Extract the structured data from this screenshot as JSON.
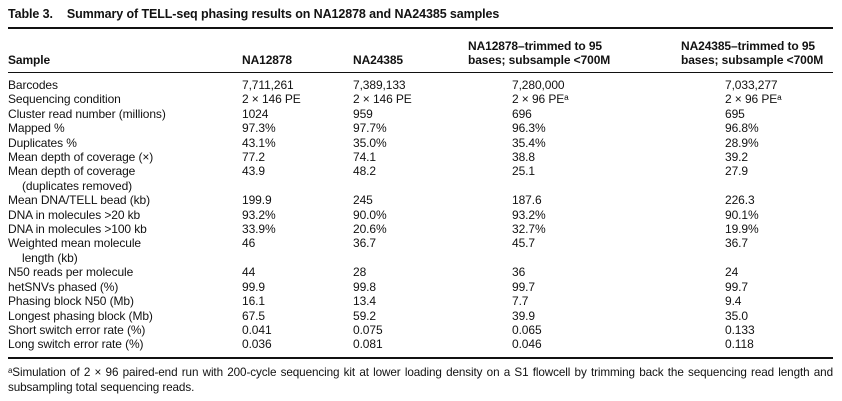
{
  "title": {
    "label": "Table 3.",
    "text": "Summary of TELL-seq phasing results on NA12878 and NA24385 samples"
  },
  "columns": [
    {
      "line1": "Sample"
    },
    {
      "line1": "NA12878"
    },
    {
      "line1": "NA24385"
    },
    {
      "line1": "NA12878–trimmed to 95",
      "line2": "bases; subsample <700M"
    },
    {
      "line1": "NA24385–trimmed to 95",
      "line2": "bases; subsample <700M"
    }
  ],
  "rows": [
    {
      "label": "Barcodes",
      "values": [
        "7,711,261",
        "7,389,133",
        "7,280,000",
        "7,033,277"
      ]
    },
    {
      "label": "Sequencing condition",
      "values": [
        "2 × 146 PE",
        "2 × 146 PE",
        "2 × 96 PEᵃ",
        "2 × 96 PEᵃ"
      ]
    },
    {
      "label": "Cluster read number (millions)",
      "values": [
        "1024",
        "959",
        "696",
        "695"
      ]
    },
    {
      "label": "Mapped %",
      "values": [
        "97.3%",
        "97.7%",
        "96.3%",
        "96.8%"
      ]
    },
    {
      "label": "Duplicates %",
      "values": [
        "43.1%",
        "35.0%",
        "35.4%",
        "28.9%"
      ]
    },
    {
      "label": "Mean depth of coverage (×)",
      "values": [
        "77.2",
        "74.1",
        "38.8",
        "39.2"
      ]
    },
    {
      "label": "Mean depth of coverage",
      "label2": "(duplicates removed)",
      "values": [
        "43.9",
        "48.2",
        "25.1",
        "27.9"
      ]
    },
    {
      "label": "Mean DNA/TELL bead (kb)",
      "values": [
        "199.9",
        "245",
        "187.6",
        "226.3"
      ]
    },
    {
      "label": "DNA in molecules >20 kb",
      "values": [
        "93.2%",
        "90.0%",
        "93.2%",
        "90.1%"
      ]
    },
    {
      "label": "DNA in molecules >100 kb",
      "values": [
        "33.9%",
        "20.6%",
        "32.7%",
        "19.9%"
      ]
    },
    {
      "label": "Weighted mean molecule",
      "label2": "length (kb)",
      "values": [
        "46",
        "36.7",
        "45.7",
        "36.7"
      ]
    },
    {
      "label": "N50 reads per molecule",
      "values": [
        "44",
        "28",
        "36",
        "24"
      ]
    },
    {
      "label": "hetSNVs phased (%)",
      "values": [
        "99.9",
        "99.8",
        "99.7",
        "99.7"
      ]
    },
    {
      "label": "Phasing block N50 (Mb)",
      "values": [
        "16.1",
        "13.4",
        "7.7",
        "9.4"
      ]
    },
    {
      "label": "Longest phasing block (Mb)",
      "values": [
        "67.5",
        "59.2",
        "39.9",
        "35.0"
      ]
    },
    {
      "label": "Short switch error rate (%)",
      "values": [
        "0.041",
        "0.075",
        "0.065",
        "0.133"
      ]
    },
    {
      "label": "Long switch error rate (%)",
      "values": [
        "0.036",
        "0.081",
        "0.046",
        "0.118"
      ]
    }
  ],
  "footnote": "ᵃSimulation of 2 × 96 paired-end run with 200-cycle sequencing kit at lower loading density on a S1 flowcell by trimming back the sequencing read length and subsampling total sequencing reads."
}
